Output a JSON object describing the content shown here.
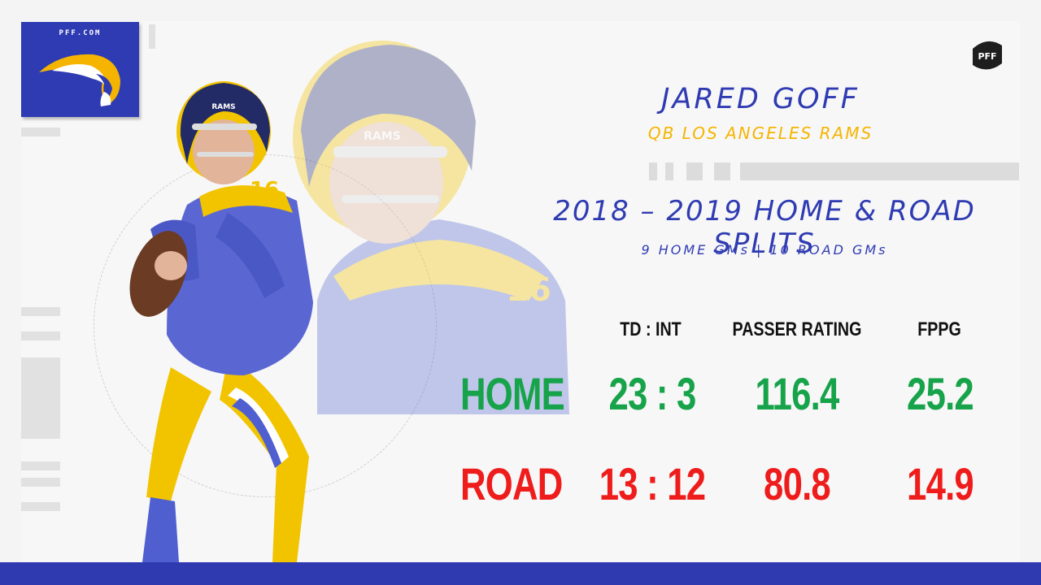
{
  "branding": {
    "site": "PFF.COM",
    "team_logo_icon": "rams-horn-logo-icon",
    "badge_text": "PFF",
    "colors": {
      "blue": "#2f3bb2",
      "gold": "#f5b400",
      "home": "#16a34a",
      "road": "#ef1c1c"
    }
  },
  "player": {
    "name": "JARED GOFF",
    "position_team": "QB LOS ANGELES RAMS",
    "jersey_number": "16",
    "helmet_text": "RAMS"
  },
  "split": {
    "title": "2018 – 2019 HOME & ROAD SPLITS",
    "games": "9 HOME GMs | 10 ROAD GMs"
  },
  "table": {
    "headers": [
      "TD : INT",
      "PASSER RATING",
      "FPPG"
    ],
    "rows": [
      {
        "label": "HOME",
        "values": [
          "23 : 3",
          "116.4",
          "25.2"
        ]
      },
      {
        "label": "ROAD",
        "values": [
          "13 : 12",
          "80.8",
          "14.9"
        ]
      }
    ]
  }
}
